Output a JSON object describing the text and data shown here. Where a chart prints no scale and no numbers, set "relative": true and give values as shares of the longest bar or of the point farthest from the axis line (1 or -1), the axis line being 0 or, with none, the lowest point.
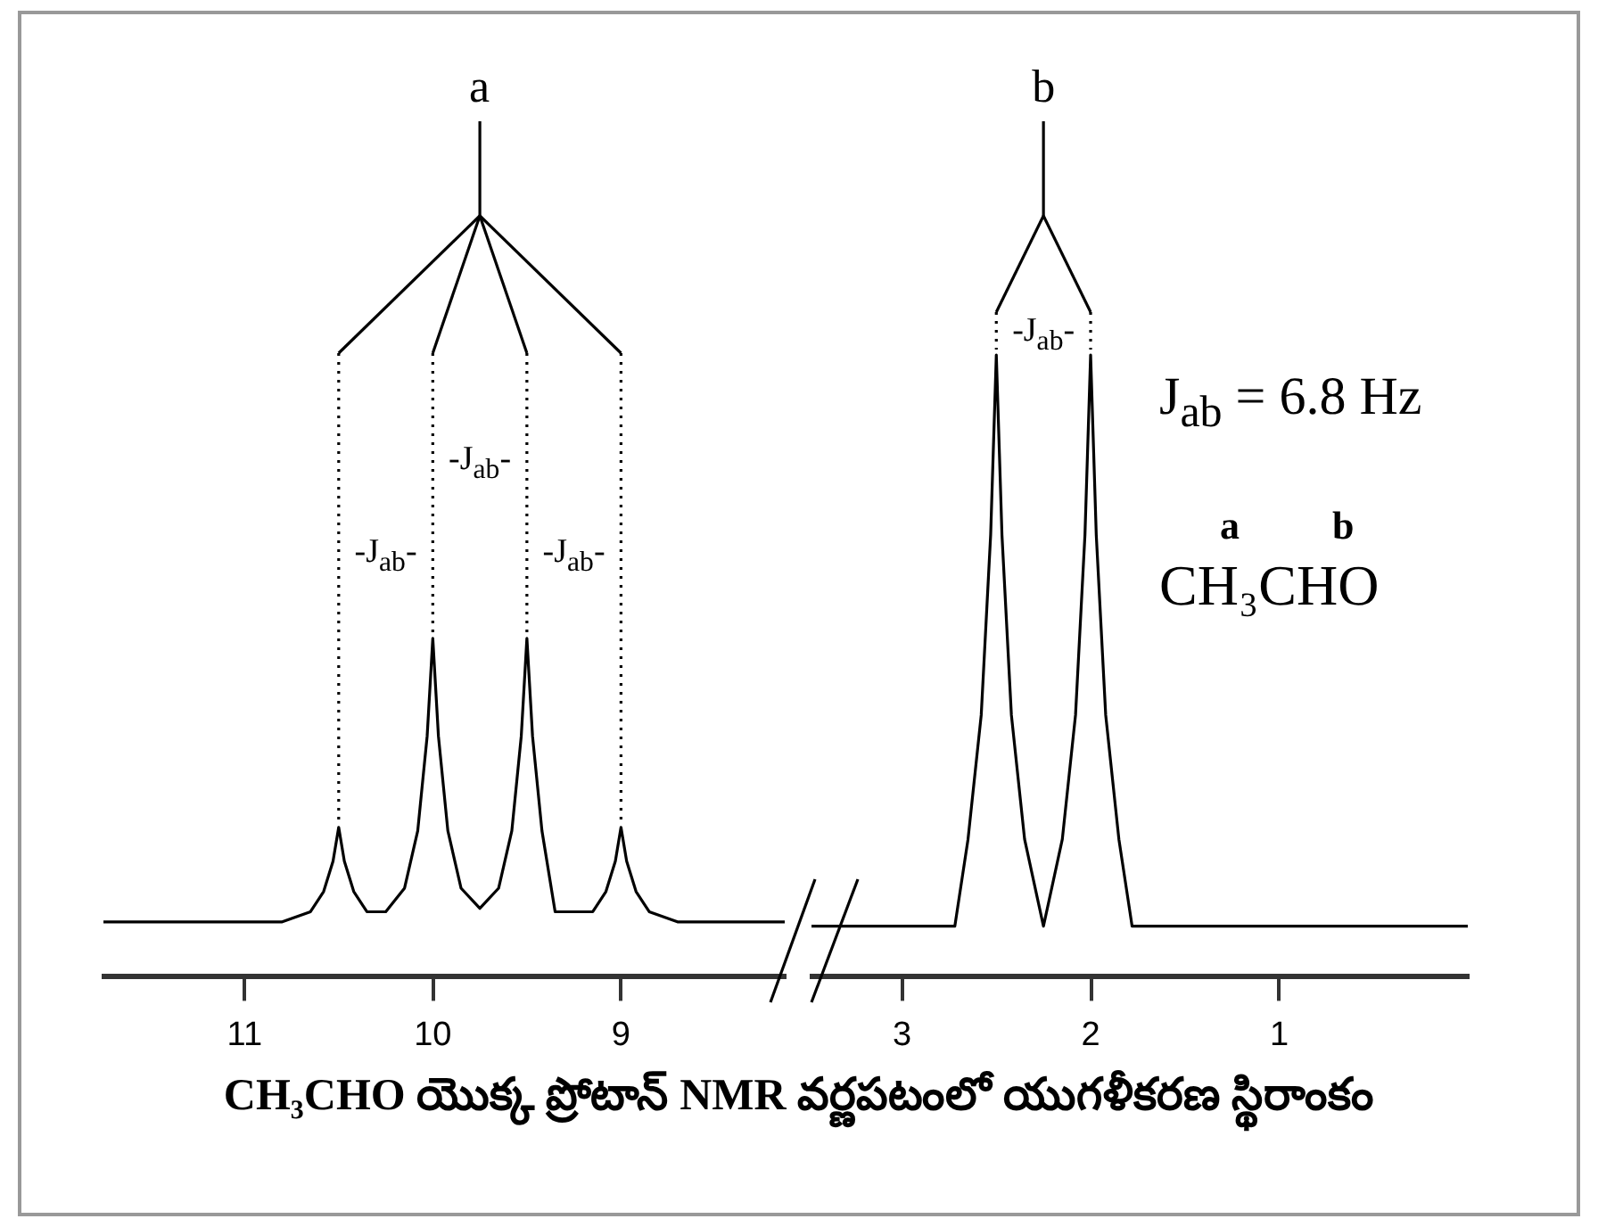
{
  "chart_data": [
    {
      "type": "line",
      "title": "CH₃CHO యొక్క ప్రోటాన్ NMR వర్ణపటంలో యుగళీకరణ స్థిరాంకం",
      "relative": true,
      "marker": "none",
      "legend": false,
      "x": [
        11.75,
        10.8,
        10.65,
        10.58,
        10.53,
        10.5,
        10.47,
        10.42,
        10.35,
        10.25,
        10.15,
        10.08,
        10.03,
        10.0,
        9.97,
        9.92,
        9.85,
        9.75,
        9.65,
        9.58,
        9.53,
        9.5,
        9.47,
        9.42,
        9.35,
        9.25,
        9.15,
        9.08,
        9.03,
        9.0,
        8.97,
        8.92,
        8.85,
        8.7,
        8.13
      ],
      "series": [
        {
          "color": "#000000",
          "values": [
            0.16,
            0.16,
            0.19,
            0.25,
            0.34,
            0.44,
            0.34,
            0.25,
            0.19,
            0.19,
            0.26,
            0.43,
            0.71,
            1,
            0.71,
            0.43,
            0.26,
            0.2,
            0.26,
            0.43,
            0.71,
            1,
            0.71,
            0.43,
            0.19,
            0.19,
            0.19,
            0.25,
            0.34,
            0.44,
            0.34,
            0.25,
            0.19,
            0.16,
            0.16
          ]
        }
      ],
      "xlim": [
        11.75,
        8.13
      ],
      "xticks": [
        11,
        10,
        9
      ],
      "annotations": [
        "a",
        "-J$_{ab}$-",
        "-J$_{ab}$-",
        "-J$_{ab}$-"
      ]
    },
    {
      "type": "line",
      "relative": true,
      "marker": "none",
      "legend": false,
      "x": [
        3.48,
        2.72,
        2.65,
        2.58,
        2.53,
        2.5,
        2.47,
        2.42,
        2.35,
        2.25,
        2.15,
        2.08,
        2.03,
        2.0,
        1.97,
        1.92,
        1.85,
        1.78,
        0
      ],
      "series": [
        {
          "color": "#000000",
          "values": [
            0.08,
            0.08,
            0.22,
            0.42,
            0.71,
            1,
            0.71,
            0.42,
            0.22,
            0.08,
            0.22,
            0.42,
            0.71,
            1,
            0.71,
            0.42,
            0.22,
            0.08,
            0.08
          ]
        }
      ],
      "xlim": [
        3.48,
        0
      ],
      "xticks": [
        3,
        2,
        1
      ],
      "annotations": [
        "b",
        "-J$_{ab}$-",
        "J$_{ab}$ = 6.8 Hz",
        "a",
        "b",
        "CH₃CHO"
      ]
    }
  ]
}
